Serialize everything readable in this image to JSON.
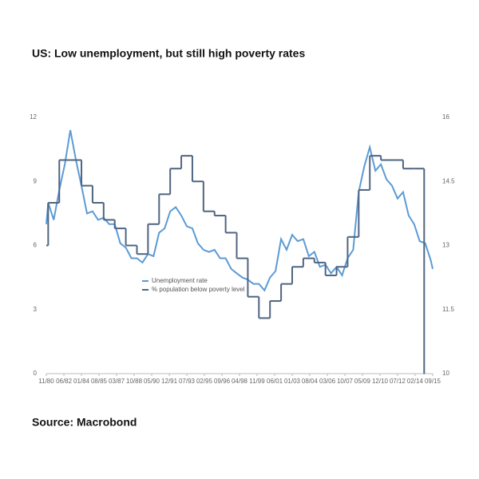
{
  "chart_data": {
    "type": "line",
    "title": "US: Low unemployment, but still high poverty rates",
    "source": "Source: Macrobond",
    "xlim": [
      1980.83,
      2015.67
    ],
    "xticks": [
      {
        "value": 1980.83,
        "label": "11/80"
      },
      {
        "value": 1982.42,
        "label": "06/82"
      },
      {
        "value": 1984.0,
        "label": "01/84"
      },
      {
        "value": 1985.58,
        "label": "08/85"
      },
      {
        "value": 1987.17,
        "label": "03/87"
      },
      {
        "value": 1988.75,
        "label": "10/88"
      },
      {
        "value": 1990.33,
        "label": "05/90"
      },
      {
        "value": 1991.92,
        "label": "12/91"
      },
      {
        "value": 1993.5,
        "label": "07/93"
      },
      {
        "value": 1995.08,
        "label": "02/95"
      },
      {
        "value": 1996.67,
        "label": "09/96"
      },
      {
        "value": 1998.25,
        "label": "04/98"
      },
      {
        "value": 1999.83,
        "label": "11/99"
      },
      {
        "value": 2001.42,
        "label": "06/01"
      },
      {
        "value": 2003.0,
        "label": "01/03"
      },
      {
        "value": 2004.58,
        "label": "08/04"
      },
      {
        "value": 2006.17,
        "label": "03/06"
      },
      {
        "value": 2007.75,
        "label": "10/07"
      },
      {
        "value": 2009.33,
        "label": "05/09"
      },
      {
        "value": 2010.92,
        "label": "12/10"
      },
      {
        "value": 2012.5,
        "label": "07/12"
      },
      {
        "value": 2014.08,
        "label": "02/14"
      },
      {
        "value": 2015.67,
        "label": "09/15"
      }
    ],
    "ylim": [
      0,
      12
    ],
    "yticks": [
      0,
      3,
      6,
      9,
      12
    ],
    "y2lim": [
      10,
      16
    ],
    "y2ticks": [
      10,
      11.5,
      13,
      14.5,
      16
    ],
    "series": [
      {
        "name": "Unemployment rate",
        "color": "#5b9bd5",
        "x": [
          1980.83,
          1981.0,
          1981.5,
          1982.0,
          1982.5,
          1983.0,
          1983.5,
          1984.0,
          1984.5,
          1985.0,
          1985.5,
          1986.0,
          1986.5,
          1987.0,
          1987.5,
          1988.0,
          1988.5,
          1989.0,
          1989.5,
          1990.0,
          1990.5,
          1991.0,
          1991.5,
          1992.0,
          1992.5,
          1993.0,
          1993.5,
          1994.0,
          1994.5,
          1995.0,
          1995.5,
          1996.0,
          1996.5,
          1997.0,
          1997.5,
          1998.0,
          1998.5,
          1999.0,
          1999.5,
          2000.0,
          2000.5,
          2001.0,
          2001.5,
          2002.0,
          2002.5,
          2003.0,
          2003.5,
          2004.0,
          2004.5,
          2005.0,
          2005.5,
          2006.0,
          2006.5,
          2007.0,
          2007.5,
          2008.0,
          2008.5,
          2009.0,
          2009.5,
          2010.0,
          2010.5,
          2011.0,
          2011.5,
          2012.0,
          2012.5,
          2013.0,
          2013.5,
          2014.0,
          2014.5,
          2015.0,
          2015.5,
          2015.67
        ],
        "values": [
          7.0,
          8.0,
          7.2,
          8.6,
          9.8,
          11.4,
          10.0,
          8.8,
          7.5,
          7.6,
          7.2,
          7.3,
          7.0,
          7.0,
          6.1,
          5.9,
          5.4,
          5.4,
          5.2,
          5.6,
          5.5,
          6.6,
          6.8,
          7.6,
          7.8,
          7.4,
          6.9,
          6.8,
          6.1,
          5.8,
          5.7,
          5.8,
          5.4,
          5.4,
          4.9,
          4.7,
          4.5,
          4.4,
          4.2,
          4.2,
          3.9,
          4.5,
          4.8,
          6.3,
          5.8,
          6.5,
          6.2,
          6.3,
          5.5,
          5.7,
          5.0,
          5.1,
          4.7,
          5.0,
          4.6,
          5.4,
          5.8,
          8.5,
          9.7,
          10.6,
          9.5,
          9.8,
          9.1,
          8.8,
          8.2,
          8.5,
          7.4,
          7.0,
          6.2,
          6.1,
          5.3,
          4.9
        ]
      },
      {
        "name": "% population below poverty level",
        "color": "#4f6580",
        "axis": "y2",
        "step": true,
        "x": [
          1980.83,
          1981.0,
          1982.0,
          1984.0,
          1985.0,
          1986.0,
          1987.0,
          1988.0,
          1989.0,
          1990.0,
          1991.0,
          1992.0,
          1993.0,
          1994.0,
          1995.0,
          1996.0,
          1997.0,
          1998.0,
          1999.0,
          2000.0,
          2001.0,
          2002.0,
          2003.0,
          2004.0,
          2005.0,
          2006.0,
          2007.0,
          2008.0,
          2009.0,
          2010.0,
          2011.0,
          2012.0,
          2013.0,
          2014.0,
          2014.9
        ],
        "values": [
          13.0,
          14.0,
          15.0,
          14.4,
          14.0,
          13.6,
          13.4,
          13.0,
          12.8,
          13.5,
          14.2,
          14.8,
          15.1,
          14.5,
          13.8,
          13.7,
          13.3,
          12.7,
          11.8,
          11.3,
          11.7,
          12.1,
          12.5,
          12.7,
          12.6,
          12.3,
          12.5,
          13.2,
          14.3,
          15.1,
          15.0,
          15.0,
          14.8,
          14.8,
          10.0
        ]
      }
    ]
  }
}
